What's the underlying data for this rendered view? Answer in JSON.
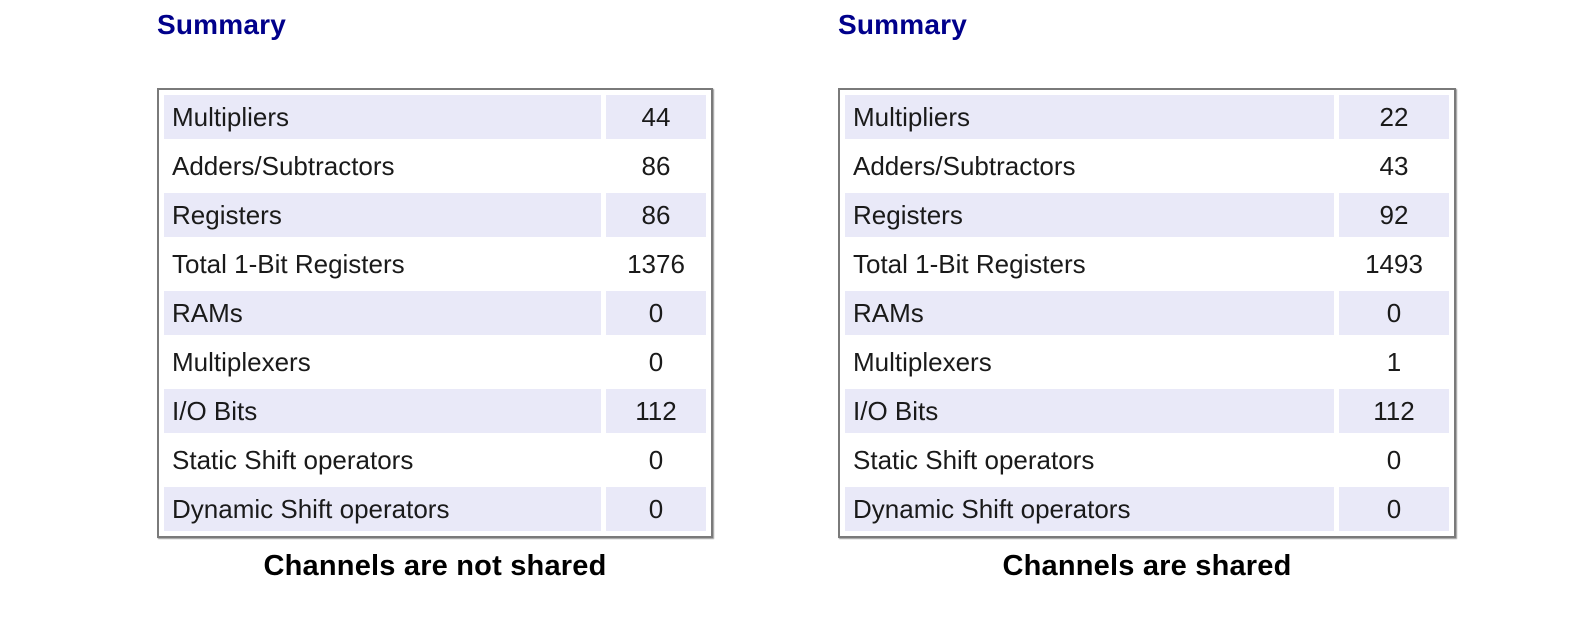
{
  "colors": {
    "title": "#00008B",
    "row_highlight": "#E9E9F8",
    "table_border": "#7a7a7a",
    "caption": "#000000"
  },
  "left_panel": {
    "title": "Summary",
    "caption": "Channels are not shared",
    "rows": [
      {
        "label": "Multipliers",
        "value": "44"
      },
      {
        "label": "Adders/Subtractors",
        "value": "86"
      },
      {
        "label": "Registers",
        "value": "86"
      },
      {
        "label": "Total 1-Bit Registers",
        "value": "1376"
      },
      {
        "label": "RAMs",
        "value": "0"
      },
      {
        "label": "Multiplexers",
        "value": "0"
      },
      {
        "label": "I/O Bits",
        "value": "112"
      },
      {
        "label": "Static Shift operators",
        "value": "0"
      },
      {
        "label": "Dynamic Shift operators",
        "value": "0"
      }
    ]
  },
  "right_panel": {
    "title": "Summary",
    "caption": "Channels are shared",
    "rows": [
      {
        "label": "Multipliers",
        "value": "22"
      },
      {
        "label": "Adders/Subtractors",
        "value": "43"
      },
      {
        "label": "Registers",
        "value": "92"
      },
      {
        "label": "Total 1-Bit Registers",
        "value": "1493"
      },
      {
        "label": "RAMs",
        "value": "0"
      },
      {
        "label": "Multiplexers",
        "value": "1"
      },
      {
        "label": "I/O Bits",
        "value": "112"
      },
      {
        "label": "Static Shift operators",
        "value": "0"
      },
      {
        "label": "Dynamic Shift operators",
        "value": "0"
      }
    ]
  }
}
